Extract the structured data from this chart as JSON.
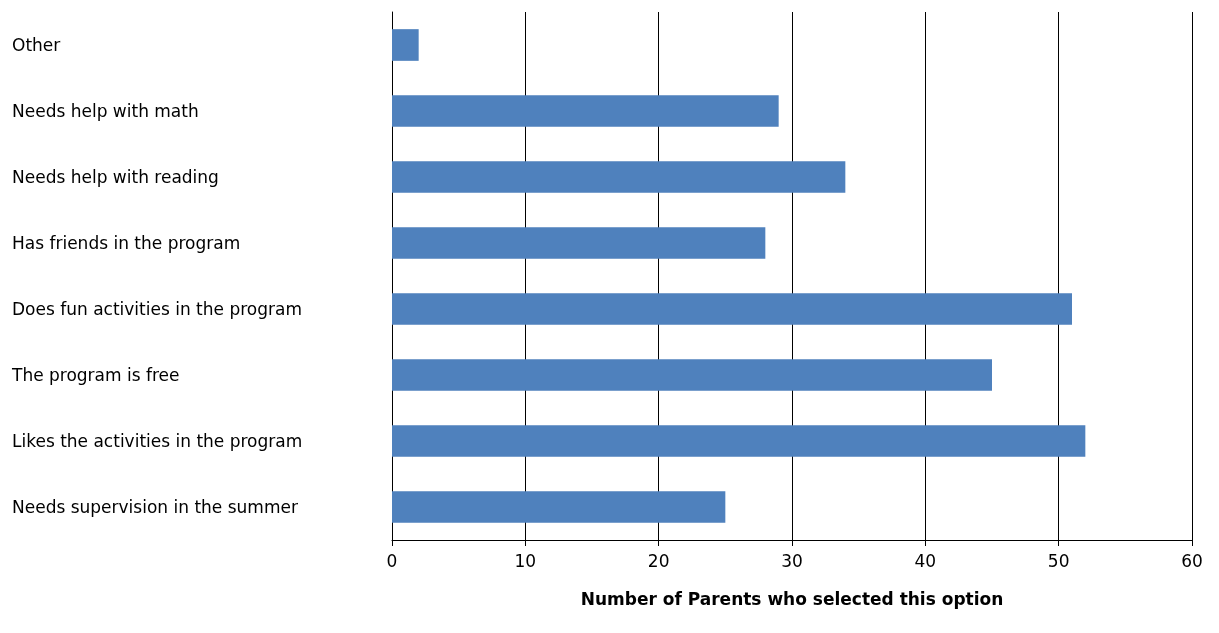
{
  "chart_data": {
    "type": "bar",
    "orientation": "horizontal",
    "xlabel": "Number of Parents who selected this option",
    "categories": [
      "Other",
      "Needs help with math",
      "Needs help with reading",
      "Has friends in the program",
      "Does fun activities in the program",
      "The program is free",
      "Likes the activities in the program",
      "Needs supervision in the summer"
    ],
    "values": [
      2,
      29,
      34,
      28,
      51,
      45,
      52,
      25
    ],
    "color": "#4f81bd",
    "xlim": [
      0,
      60
    ],
    "xticks": [
      0,
      10,
      20,
      30,
      40,
      50,
      60
    ],
    "grid": "x"
  }
}
